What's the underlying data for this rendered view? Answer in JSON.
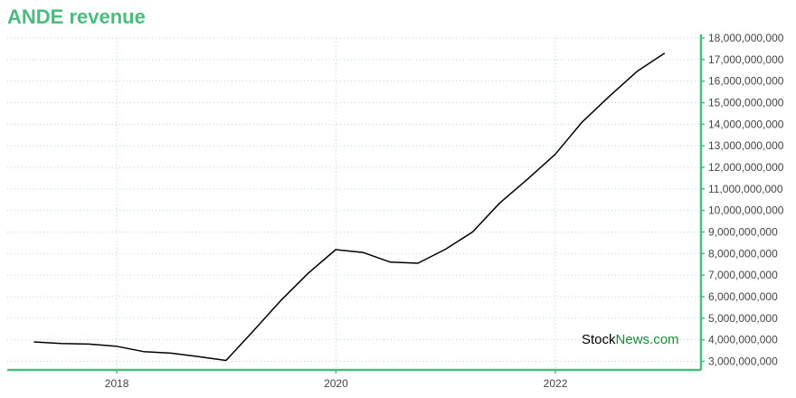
{
  "title": "ANDE revenue",
  "watermark": {
    "part1": "Stock",
    "part2": "News",
    "part3": ".com"
  },
  "colors": {
    "accent": "#4cbb7f",
    "line": "#000000",
    "grid": "#b8dccc",
    "watermark_dark": "#000000",
    "watermark_green": "#1a8a3a"
  },
  "chart_data": {
    "type": "line",
    "title": "ANDE revenue",
    "xlabel": "",
    "ylabel": "",
    "x_ticks": [
      "2018",
      "2020",
      "2022"
    ],
    "y_ticks": [
      "3,000,000,000",
      "4,000,000,000",
      "5,000,000,000",
      "6,000,000,000",
      "7,000,000,000",
      "8,000,000,000",
      "9,000,000,000",
      "10,000,000,000",
      "11,000,000,000",
      "12,000,000,000",
      "13,000,000,000",
      "14,000,000,000",
      "15,000,000,000",
      "16,000,000,000",
      "17,000,000,000",
      "18,000,000,000"
    ],
    "ylim": [
      2600000000,
      18000000000
    ],
    "xlim": [
      "2017-01-01",
      "2023-05-01"
    ],
    "grid": true,
    "y_axis_side": "right",
    "series": [
      {
        "x": [
          "2017-03-31",
          "2017-06-30",
          "2017-09-30",
          "2017-12-31",
          "2018-03-31",
          "2018-06-30",
          "2018-09-30",
          "2018-12-31",
          "2019-03-31",
          "2019-06-30",
          "2019-09-30",
          "2019-12-31",
          "2020-03-31",
          "2020-06-30",
          "2020-09-30",
          "2020-12-31",
          "2021-03-31",
          "2021-06-30",
          "2021-09-30",
          "2021-12-31",
          "2022-03-31",
          "2022-06-30",
          "2022-09-30",
          "2022-12-31"
        ],
        "values": [
          3900000000,
          3830000000,
          3800000000,
          3700000000,
          3450000000,
          3380000000,
          3220000000,
          3040000000,
          4400000000,
          5800000000,
          7080000000,
          8180000000,
          8050000000,
          7600000000,
          7550000000,
          8200000000,
          9000000000,
          10350000000,
          11450000000,
          12600000000,
          14100000000,
          15300000000,
          16450000000,
          17300000000
        ]
      }
    ]
  }
}
